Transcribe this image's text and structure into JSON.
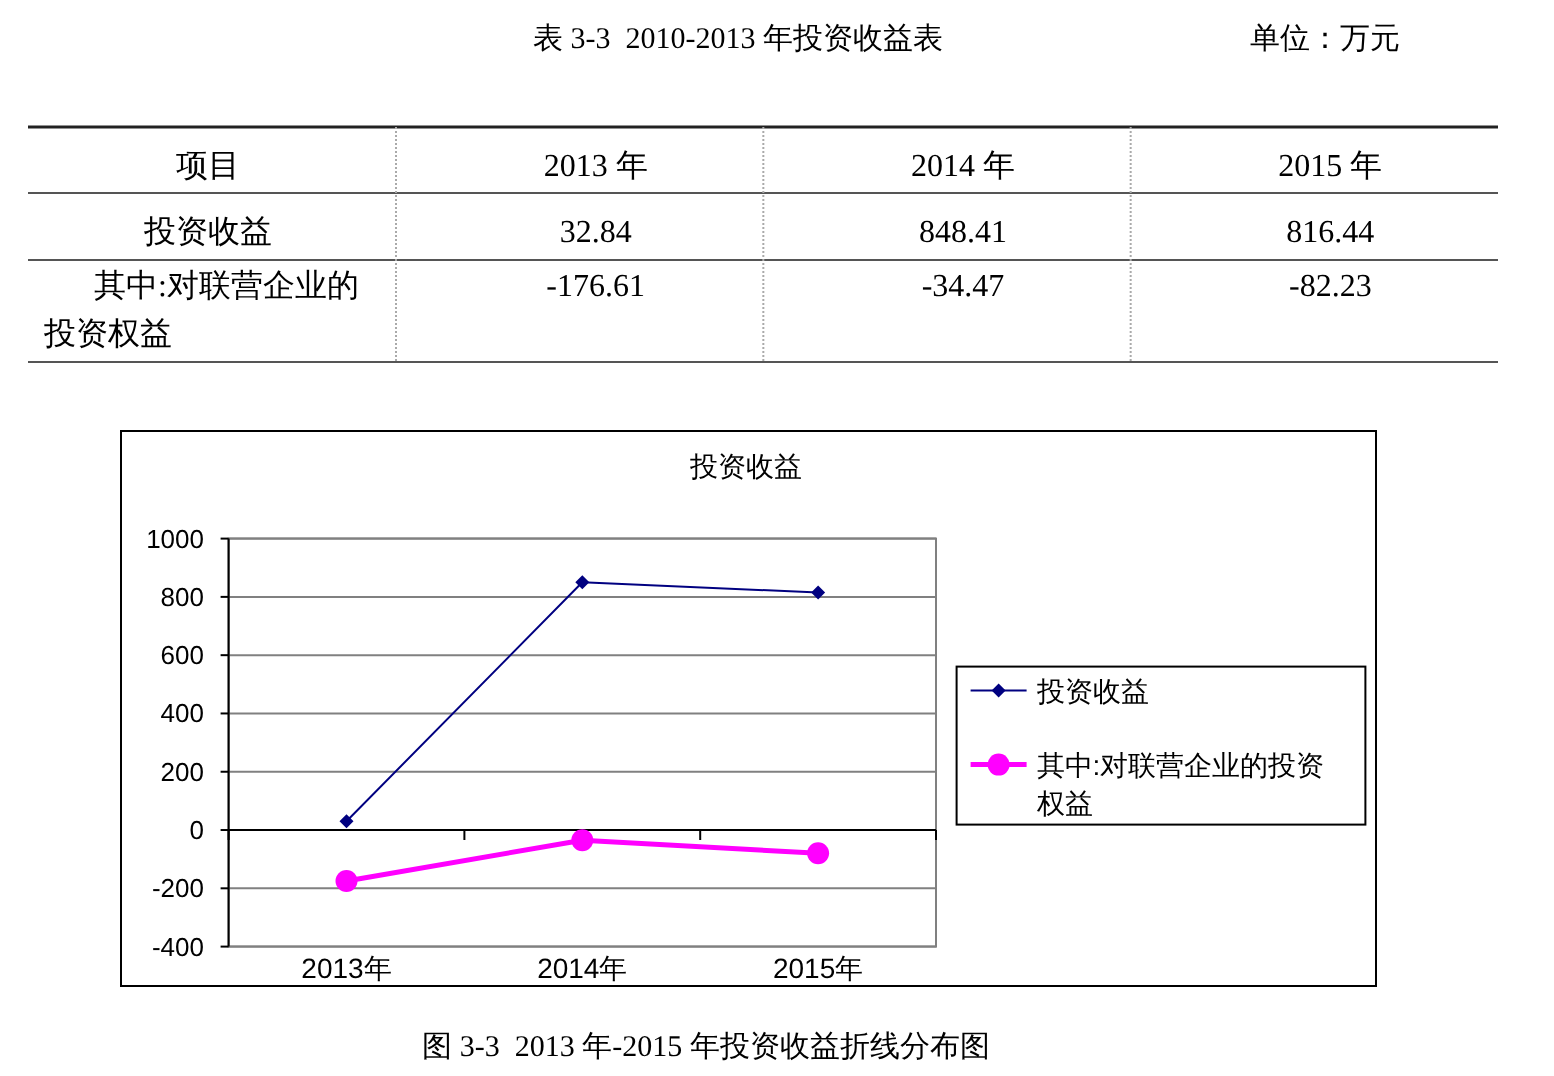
{
  "chart_data": [
    {
      "type": "other",
      "title": "表 3-3  2010-2013 年投资收益表",
      "subtitle": "单位：万元",
      "annotations": [
        "项目"
      ],
      "categories": [
        "2013 年",
        "2014 年",
        "2015 年"
      ],
      "data_labels": true,
      "series": [
        {
          "name": "投资收益",
          "values": [
            32.84,
            848.41,
            816.44
          ]
        },
        {
          "name": "其中:对联营企业的投资权益",
          "values": [
            -176.61,
            -34.47,
            -82.23
          ]
        }
      ]
    },
    {
      "type": "line",
      "title": "投资收益",
      "categories": [
        "2013年",
        "2014年",
        "2015年"
      ],
      "series": [
        {
          "name": "投资收益",
          "color": "#000080",
          "marker": "diamond",
          "values": [
            30,
            850,
            815
          ]
        },
        {
          "name": "其中:对联营企业的投资权益",
          "color": "#ff00ff",
          "marker": "circle",
          "values": [
            -175,
            -35,
            -80
          ]
        }
      ],
      "ylim": [
        -400,
        1000
      ],
      "yticks": [
        -400,
        -200,
        0,
        200,
        400,
        600,
        800,
        1000
      ],
      "grid": "y",
      "legend": "right",
      "annotations": [
        "图 3-3  2013 年-2015 年投资收益折线分布图"
      ]
    }
  ]
}
